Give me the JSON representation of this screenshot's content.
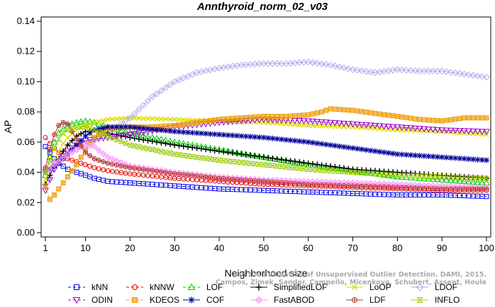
{
  "chart_data": {
    "type": "line",
    "title": "Annthyroid_norm_02_v03",
    "xlabel": "Neighborhood size",
    "ylabel": "AP",
    "xlim": [
      1,
      100
    ],
    "ylim": [
      0,
      0.14
    ],
    "x_ticks": [
      1,
      10,
      20,
      30,
      40,
      50,
      60,
      70,
      80,
      90,
      100
    ],
    "y_ticks": [
      "0.00",
      "0.02",
      "0.04",
      "0.06",
      "0.08",
      "0.10",
      "0.12",
      "0.14"
    ],
    "grid": false,
    "legend_position": "bottom",
    "watermark": "Campos, Zimek, Sander, Campello, Micenkova, Schubert, Assent, Houle\nOn the Evaluation of Unsupervised Outlier Detection. DAMI, 2015.",
    "series": [
      {
        "name": "kNN",
        "color": "#0000ee",
        "marker": "square",
        "line": "dashed",
        "x": [
          1,
          2,
          3,
          4,
          5,
          6,
          8,
          10,
          12,
          15,
          20,
          30,
          40,
          50,
          60,
          70,
          80,
          90,
          100
        ],
        "values": [
          0.057,
          0.053,
          0.049,
          0.046,
          0.044,
          0.042,
          0.04,
          0.038,
          0.036,
          0.034,
          0.033,
          0.031,
          0.029,
          0.028,
          0.027,
          0.026,
          0.025,
          0.025,
          0.024
        ]
      },
      {
        "name": "kNNW",
        "color": "#ee0000",
        "marker": "circle",
        "line": "dashed",
        "x": [
          1,
          2,
          3,
          4,
          5,
          6,
          8,
          10,
          12,
          15,
          20,
          30,
          40,
          50,
          60,
          70,
          80,
          90,
          100
        ],
        "values": [
          0.063,
          0.059,
          0.056,
          0.053,
          0.051,
          0.049,
          0.047,
          0.045,
          0.043,
          0.041,
          0.039,
          0.036,
          0.034,
          0.032,
          0.031,
          0.03,
          0.029,
          0.028,
          0.028
        ]
      },
      {
        "name": "LOF",
        "color": "#00cc00",
        "marker": "triangle",
        "line": "dashed",
        "x": [
          1,
          2,
          3,
          4,
          5,
          6,
          8,
          10,
          12,
          15,
          20,
          30,
          40,
          50,
          60,
          70,
          80,
          90,
          100
        ],
        "values": [
          0.038,
          0.05,
          0.06,
          0.066,
          0.069,
          0.071,
          0.073,
          0.074,
          0.073,
          0.07,
          0.066,
          0.06,
          0.055,
          0.05,
          0.045,
          0.041,
          0.037,
          0.035,
          0.033
        ]
      },
      {
        "name": "SimplifiedLOF",
        "color": "#000000",
        "marker": "plus",
        "line": "solid",
        "x": [
          1,
          2,
          3,
          4,
          5,
          6,
          8,
          10,
          12,
          15,
          20,
          30,
          40,
          50,
          60,
          70,
          80,
          90,
          100
        ],
        "values": [
          0.032,
          0.038,
          0.044,
          0.049,
          0.054,
          0.058,
          0.064,
          0.067,
          0.068,
          0.066,
          0.063,
          0.058,
          0.054,
          0.05,
          0.046,
          0.042,
          0.04,
          0.038,
          0.036
        ]
      },
      {
        "name": "LoOP",
        "color": "#dddd00",
        "marker": "cross",
        "line": "solid",
        "x": [
          1,
          2,
          3,
          4,
          5,
          6,
          8,
          10,
          12,
          15,
          20,
          30,
          40,
          50,
          60,
          70,
          80,
          90,
          100
        ],
        "values": [
          0.035,
          0.042,
          0.048,
          0.054,
          0.059,
          0.063,
          0.068,
          0.071,
          0.073,
          0.075,
          0.076,
          0.075,
          0.074,
          0.073,
          0.071,
          0.07,
          0.068,
          0.067,
          0.065
        ]
      },
      {
        "name": "LDOF",
        "color": "#aaaaee",
        "marker": "diamond",
        "line": "solid",
        "x": [
          1,
          2,
          3,
          4,
          5,
          6,
          8,
          10,
          12,
          15,
          20,
          25,
          30,
          35,
          40,
          45,
          50,
          55,
          60,
          65,
          70,
          75,
          80,
          85,
          90,
          95,
          100
        ],
        "values": [
          0.042,
          0.044,
          0.046,
          0.048,
          0.05,
          0.052,
          0.055,
          0.058,
          0.061,
          0.066,
          0.076,
          0.09,
          0.1,
          0.106,
          0.109,
          0.111,
          0.112,
          0.112,
          0.113,
          0.111,
          0.108,
          0.106,
          0.108,
          0.107,
          0.107,
          0.105,
          0.103
        ]
      },
      {
        "name": "ODIN",
        "color": "#9900cc",
        "marker": "triangle-down",
        "line": "dashed",
        "x": [
          1,
          2,
          3,
          4,
          5,
          6,
          8,
          10,
          12,
          15,
          20,
          30,
          40,
          50,
          60,
          70,
          80,
          90,
          100
        ],
        "values": [
          0.028,
          0.035,
          0.042,
          0.047,
          0.051,
          0.054,
          0.058,
          0.061,
          0.062,
          0.063,
          0.065,
          0.07,
          0.073,
          0.075,
          0.074,
          0.072,
          0.07,
          0.068,
          0.067
        ]
      },
      {
        "name": "KDEOS",
        "color": "#ee9900",
        "marker": "square-filled",
        "line": "dashed",
        "x": [
          1,
          2,
          3,
          4,
          5,
          6,
          8,
          10,
          12,
          15,
          20,
          25,
          30,
          35,
          40,
          45,
          50,
          55,
          60,
          63,
          65,
          70,
          75,
          80,
          85,
          90,
          95,
          100
        ],
        "values": [
          0.031,
          0.022,
          0.025,
          0.029,
          0.033,
          0.037,
          0.045,
          0.055,
          0.063,
          0.069,
          0.07,
          0.07,
          0.071,
          0.073,
          0.075,
          0.076,
          0.077,
          0.077,
          0.078,
          0.08,
          0.082,
          0.081,
          0.079,
          0.077,
          0.075,
          0.074,
          0.076,
          0.076
        ]
      },
      {
        "name": "COF",
        "color": "#000099",
        "marker": "asterisk",
        "line": "solid",
        "x": [
          1,
          2,
          3,
          4,
          5,
          6,
          8,
          10,
          12,
          15,
          20,
          30,
          40,
          50,
          60,
          70,
          80,
          90,
          100
        ],
        "values": [
          0.041,
          0.042,
          0.044,
          0.046,
          0.049,
          0.052,
          0.058,
          0.064,
          0.068,
          0.07,
          0.07,
          0.067,
          0.065,
          0.063,
          0.06,
          0.056,
          0.052,
          0.05,
          0.048
        ]
      },
      {
        "name": "FastABOD",
        "color": "#ff99ff",
        "marker": "diamond-filled",
        "line": "solid",
        "x": [
          1,
          2,
          3,
          4,
          5,
          6,
          8,
          10,
          12,
          15,
          20,
          30,
          40,
          50,
          60,
          70,
          80,
          90,
          100
        ],
        "values": [
          0.04,
          0.042,
          0.045,
          0.047,
          0.05,
          0.052,
          0.055,
          0.058,
          0.057,
          0.05,
          0.044,
          0.04,
          0.037,
          0.035,
          0.034,
          0.033,
          0.032,
          0.031,
          0.03
        ]
      },
      {
        "name": "LDF",
        "color": "#bb3333",
        "marker": "circle-plus",
        "line": "solid",
        "x": [
          1,
          2,
          3,
          4,
          5,
          6,
          8,
          10,
          12,
          15,
          20,
          30,
          40,
          50,
          60,
          70,
          80,
          90,
          100
        ],
        "values": [
          0.043,
          0.055,
          0.065,
          0.071,
          0.073,
          0.072,
          0.062,
          0.053,
          0.049,
          0.046,
          0.043,
          0.039,
          0.036,
          0.034,
          0.032,
          0.031,
          0.03,
          0.029,
          0.029
        ]
      },
      {
        "name": "INFLO",
        "color": "#99cc00",
        "marker": "hourglass",
        "line": "solid",
        "x": [
          1,
          2,
          3,
          4,
          5,
          6,
          8,
          10,
          12,
          15,
          20,
          30,
          40,
          50,
          60,
          70,
          80,
          90,
          100
        ],
        "values": [
          0.04,
          0.048,
          0.056,
          0.062,
          0.066,
          0.068,
          0.07,
          0.07,
          0.068,
          0.064,
          0.058,
          0.052,
          0.048,
          0.045,
          0.042,
          0.04,
          0.038,
          0.037,
          0.036
        ]
      }
    ],
    "legend_order": [
      [
        "kNN",
        "kNNW",
        "LOF",
        "SimplifiedLOF",
        "LoOP",
        "LDOF"
      ],
      [
        "ODIN",
        "KDEOS",
        "COF",
        "FastABOD",
        "LDF",
        "INFLO"
      ]
    ]
  }
}
